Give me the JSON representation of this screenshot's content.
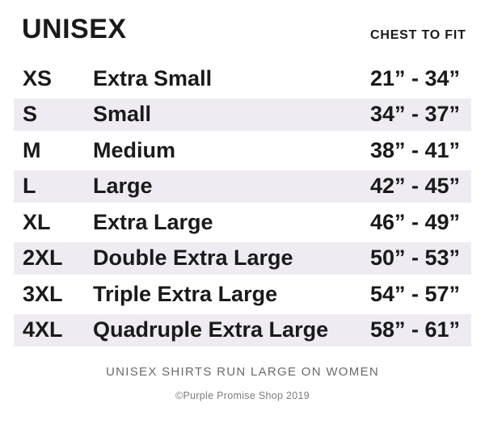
{
  "header": {
    "title": "UNISEX",
    "column_header": "CHEST TO FIT"
  },
  "table": {
    "rows": [
      {
        "code": "XS",
        "name": "Extra Small",
        "range": "21” - 34”"
      },
      {
        "code": "S",
        "name": "Small",
        "range": "34” - 37”"
      },
      {
        "code": "M",
        "name": "Medium",
        "range": "38” - 41”"
      },
      {
        "code": "L",
        "name": "Large",
        "range": "42” - 45”"
      },
      {
        "code": "XL",
        "name": "Extra Large",
        "range": "46” - 49”"
      },
      {
        "code": "2XL",
        "name": "Double Extra Large",
        "range": "50” - 53”"
      },
      {
        "code": "3XL",
        "name": "Triple Extra Large",
        "range": "54” - 57”"
      },
      {
        "code": "4XL",
        "name": "Quadruple Extra Large",
        "range": "58” - 61”"
      }
    ]
  },
  "footer": {
    "note": "UNISEX SHIRTS RUN LARGE ON WOMEN",
    "copyright": "©Purple Promise Shop 2019"
  },
  "colors": {
    "row_shade": "#eeebf2",
    "text": "#1a1a1a",
    "note_gray": "#696a6e",
    "copyright_gray": "#7c7d81"
  }
}
